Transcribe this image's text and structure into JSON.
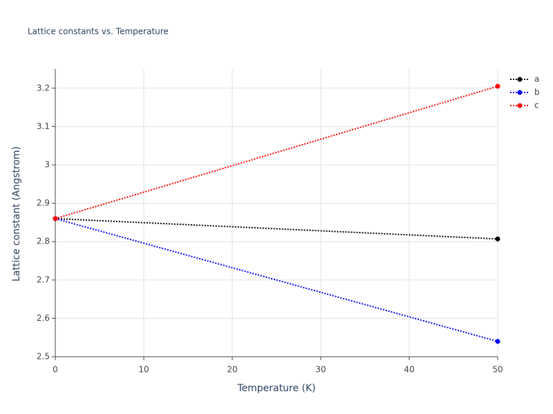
{
  "chart_data": {
    "type": "line",
    "title": "Lattice constants vs. Temperature",
    "x_label": "Temperature (K)",
    "y_label": "Lattice constant (Angstrom)",
    "x": [
      0,
      50
    ],
    "series": [
      {
        "name": "a",
        "color": "#000000",
        "values": [
          2.86,
          2.807
        ]
      },
      {
        "name": "b",
        "color": "#0000ff",
        "values": [
          2.86,
          2.54
        ]
      },
      {
        "name": "c",
        "color": "#ff0000",
        "values": [
          2.86,
          3.205
        ]
      }
    ],
    "xlim": [
      0,
      50
    ],
    "xticks": [
      0,
      10,
      20,
      30,
      40,
      50
    ],
    "ylim": [
      2.5,
      3.25
    ],
    "yticks": [
      2.5,
      2.6,
      2.7,
      2.8,
      2.9,
      3,
      3.1,
      3.2
    ],
    "grid": true,
    "legend": "top-right"
  }
}
